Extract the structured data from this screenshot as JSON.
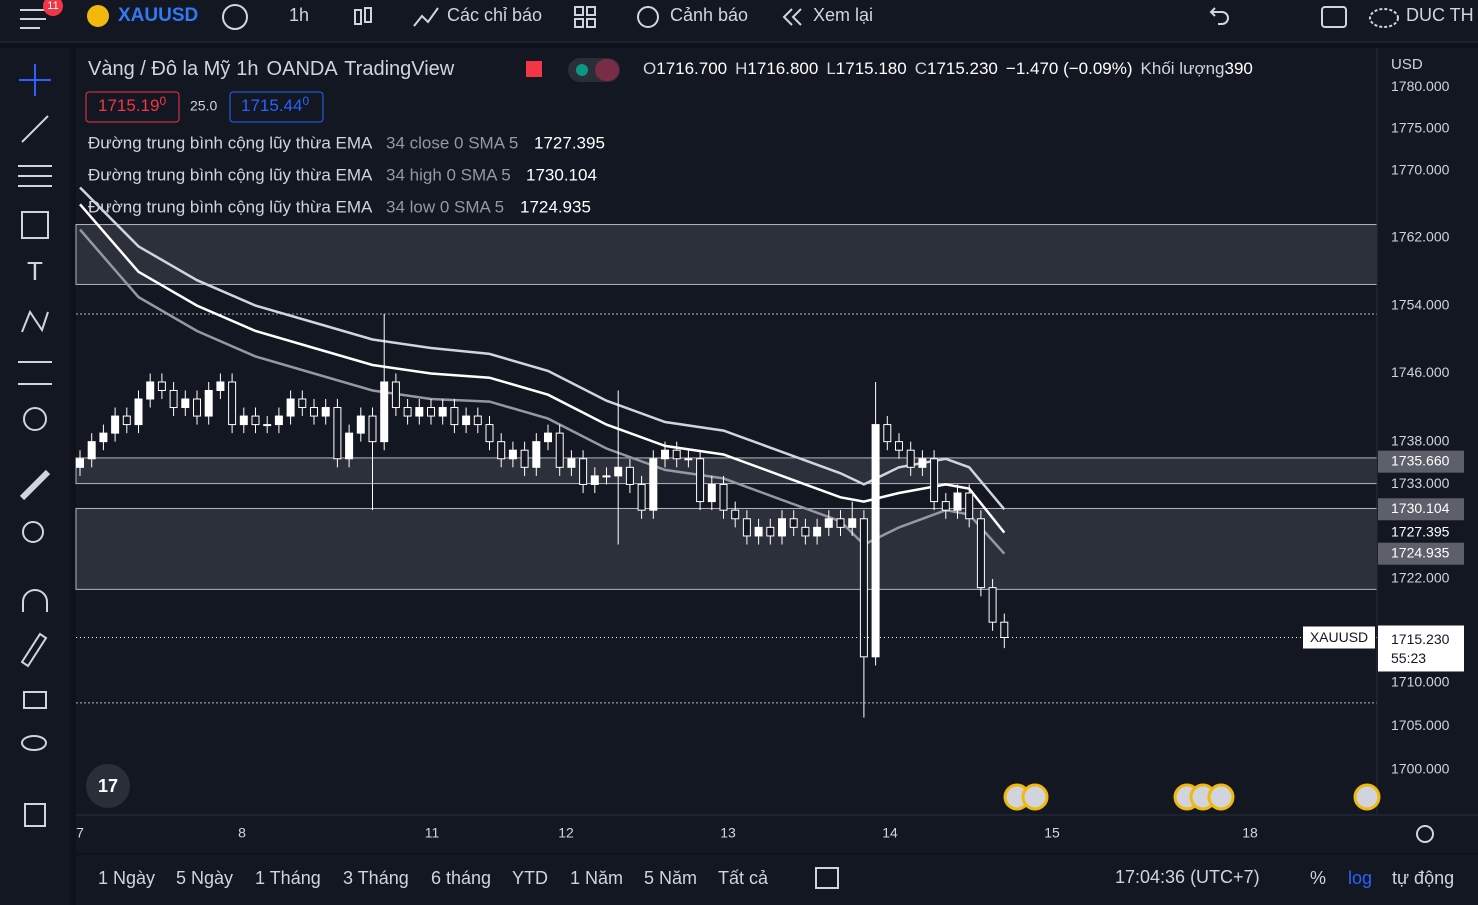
{
  "toolbar": {
    "badge": "11",
    "symbol": "XAUUSD",
    "interval": "1h",
    "indicators": "Các chỉ báo",
    "alerts": "Cảnh báo",
    "replay": "Xem lại",
    "user": "DUC TH"
  },
  "legend": {
    "name": "Vàng / Đô la Mỹ",
    "interval": "1h",
    "exchange": "OANDA",
    "source": "TradingView",
    "ohlc": [
      [
        "O",
        "1716.700"
      ],
      [
        "H",
        "1716.800"
      ],
      [
        "L",
        "1715.180"
      ],
      [
        "C",
        "1715.230"
      ]
    ],
    "change": "−1.470 (−0.09%)",
    "volume_label": "Khối lượng",
    "volume": "390",
    "bid": {
      "main": "1715.19",
      "sup": "0"
    },
    "spread": "25.0",
    "ask": {
      "main": "1715.44",
      "sup": "0"
    }
  },
  "chart": {
    "ylim": [
      1694.85,
      1784.69
    ],
    "log": true,
    "currency": "USD",
    "yticks": [
      {
        "value": 1780,
        "label": "1780.000"
      },
      {
        "value": 1775,
        "label": "1775.000"
      },
      {
        "value": 1770,
        "label": "1770.000"
      },
      {
        "value": 1762,
        "label": "1762.000"
      },
      {
        "value": 1754,
        "label": "1754.000"
      },
      {
        "value": 1746,
        "label": "1746.000"
      },
      {
        "value": 1738,
        "label": "1738.000"
      },
      {
        "value": 1733,
        "label": "1733.000"
      },
      {
        "value": 1722,
        "label": "1722.000"
      },
      {
        "value": 1710,
        "label": "1710.000"
      },
      {
        "value": 1705,
        "label": "1705.000"
      },
      {
        "value": 1700,
        "label": "1700.000"
      }
    ],
    "time_labels": [
      "7",
      "8",
      "11",
      "12",
      "13",
      "14",
      "15",
      "18"
    ],
    "candles": {
      "open": [
        1735,
        1736,
        1738,
        1739,
        1741,
        1740,
        1743,
        1745,
        1744,
        1742,
        1743,
        1741,
        1744,
        1745,
        1740,
        1741,
        1740,
        1740,
        1741,
        1743,
        1742,
        1741,
        1742,
        1736,
        1739,
        1741,
        1738,
        1745,
        1742,
        1741,
        1742,
        1741,
        1742,
        1740,
        1741,
        1740,
        1738,
        1736,
        1737,
        1735,
        1738,
        1739,
        1735,
        1736,
        1733,
        1734,
        1734,
        1735,
        1733,
        1730,
        1736,
        1737,
        1736,
        1736,
        1731,
        1733,
        1730,
        1729,
        1727,
        1728,
        1727,
        1729,
        1728,
        1727,
        1728,
        1729,
        1728,
        1729,
        1713,
        1740,
        1738,
        1737,
        1735,
        1736,
        1731,
        1730,
        1732,
        1729,
        1721,
        1717
      ],
      "high": [
        1737,
        1739,
        1740,
        1742,
        1742,
        1744,
        1746,
        1746,
        1745,
        1744,
        1744,
        1745,
        1746,
        1746,
        1742,
        1742,
        1741,
        1742,
        1744,
        1744,
        1743,
        1743,
        1743,
        1740,
        1742,
        1742,
        1753,
        1746,
        1743,
        1743,
        1743,
        1743,
        1743,
        1742,
        1742,
        1741,
        1739,
        1738,
        1738,
        1739,
        1740,
        1740,
        1737,
        1737,
        1735,
        1735,
        1744,
        1736,
        1734,
        1737,
        1738,
        1738,
        1737,
        1737,
        1734,
        1734,
        1731,
        1730,
        1729,
        1729,
        1730,
        1730,
        1729,
        1729,
        1730,
        1730,
        1731,
        1730,
        1745,
        1741,
        1739,
        1738,
        1737,
        1737,
        1732,
        1733,
        1733,
        1730,
        1722,
        1718
      ],
      "low": [
        1734,
        1735,
        1737,
        1738,
        1739,
        1739,
        1742,
        1743,
        1741,
        1741,
        1740,
        1740,
        1743,
        1739,
        1739,
        1739,
        1739,
        1739,
        1740,
        1741,
        1740,
        1740,
        1735,
        1735,
        1738,
        1730,
        1737,
        1741,
        1740,
        1740,
        1740,
        1740,
        1739,
        1739,
        1739,
        1737,
        1735,
        1735,
        1734,
        1734,
        1737,
        1734,
        1734,
        1732,
        1732,
        1733,
        1726,
        1732,
        1729,
        1729,
        1735,
        1735,
        1735,
        1730,
        1730,
        1729,
        1728,
        1726,
        1726,
        1726,
        1726,
        1727,
        1726,
        1726,
        1727,
        1727,
        1727,
        1706,
        1712,
        1737,
        1736,
        1734,
        1734,
        1730,
        1729,
        1729,
        1728,
        1720,
        1716,
        1714
      ],
      "close": [
        1736,
        1738,
        1739,
        1741,
        1740,
        1743,
        1745,
        1744,
        1742,
        1743,
        1741,
        1744,
        1745,
        1740,
        1741,
        1740,
        1740,
        1741,
        1743,
        1742,
        1741,
        1742,
        1736,
        1739,
        1741,
        1738,
        1745,
        1742,
        1741,
        1742,
        1741,
        1742,
        1740,
        1741,
        1740,
        1738,
        1736,
        1737,
        1735,
        1738,
        1739,
        1735,
        1736,
        1733,
        1734,
        1734,
        1735,
        1733,
        1730,
        1736,
        1737,
        1736,
        1736,
        1731,
        1733,
        1730,
        1729,
        1727,
        1728,
        1727,
        1729,
        1728,
        1727,
        1728,
        1729,
        1728,
        1729,
        1713,
        1740,
        1738,
        1737,
        1735,
        1736,
        1731,
        1730,
        1732,
        1729,
        1721,
        1717,
        1715.23
      ]
    },
    "ema_index": [
      0,
      5,
      10,
      15,
      20,
      25,
      30,
      35,
      40,
      45,
      50,
      55,
      60,
      65,
      67,
      70,
      74,
      76,
      79
    ],
    "ema": [
      {
        "name": "Đường trung bình cộng lũy thừa EMA",
        "params": "34 close 0 SMA 5",
        "color": "#ffffff",
        "values": [
          1766,
          1758,
          1754,
          1751,
          1749,
          1747,
          1746,
          1745.5,
          1743.5,
          1740,
          1737.5,
          1736.5,
          1734,
          1731.5,
          1731,
          1732,
          1733,
          1732.5,
          1727.395
        ]
      },
      {
        "name": "Đường trung bình cộng lũy thừa EMA",
        "params": "34 high 0 SMA 5",
        "color": "#d1d4dc",
        "values": [
          1768,
          1761,
          1757,
          1754,
          1752,
          1750,
          1749,
          1748.3,
          1746.3,
          1742.8,
          1740.3,
          1739.3,
          1736.8,
          1734.3,
          1733,
          1735,
          1736,
          1735,
          1730.104
        ]
      },
      {
        "name": "Đường trung bình cộng lũy thừa EMA",
        "params": "34 low 0 SMA 5",
        "color": "#9598a1",
        "values": [
          1763,
          1755,
          1751,
          1748,
          1746,
          1744,
          1743,
          1742.7,
          1740.7,
          1737.2,
          1734.7,
          1733.7,
          1731.2,
          1728.7,
          1726,
          1728,
          1730,
          1729.5,
          1724.935
        ]
      }
    ],
    "zones": [
      [
        1763.6,
        1756.5
      ],
      [
        1736.1,
        1733.1
      ],
      [
        1730.2,
        1720.8
      ]
    ],
    "hlines": [
      1753,
      1707.7
    ],
    "level_tag": {
      "value": 1735.66,
      "label": "1735.660"
    },
    "current": {
      "value": 1715.23,
      "label": "1715.230",
      "countdown": "55:23",
      "symbol": "XAUUSD"
    }
  },
  "bottom": {
    "ranges": [
      "1 Ngày",
      "5 Ngày",
      "1 Tháng",
      "3 Tháng",
      "6 tháng",
      "YTD",
      "1 Năm",
      "5 Năm",
      "Tất cả"
    ],
    "clock": "17:04:36 (UTC+7)",
    "percent": "%",
    "log": "log",
    "auto": "tự động"
  }
}
